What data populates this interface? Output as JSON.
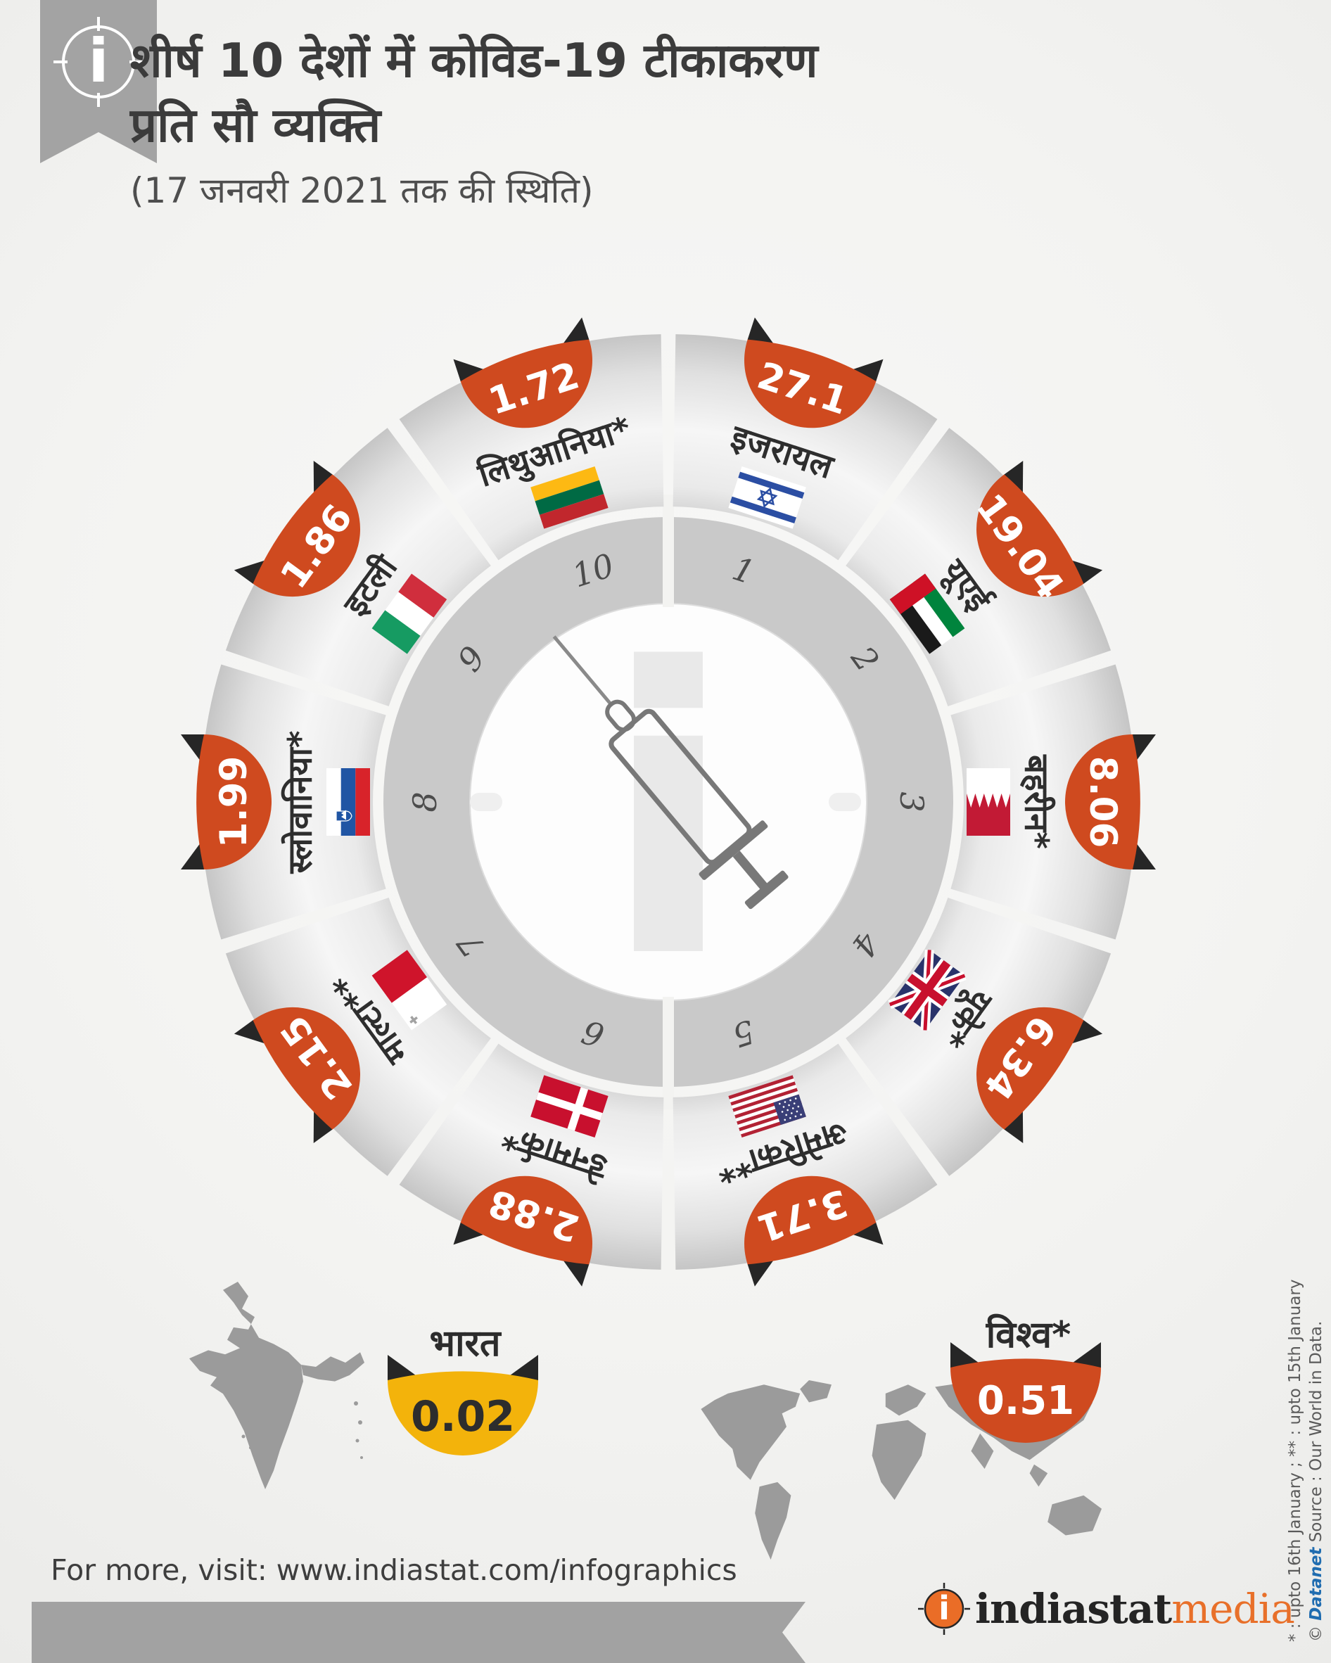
{
  "header": {
    "ribbon_icon": "indiastat-i-crosshair-icon",
    "title_line1": "शीर्ष 10 देशों में कोविड-19 टीकाकरण",
    "title_line2": "प्रति सौ व्यक्ति",
    "subtitle": "(17 जनवरी 2021 तक की स्थिति)"
  },
  "chart_data": {
    "type": "pie",
    "variant": "circular-wheel-infographic",
    "title": "शीर्ष 10 देशों में कोविड-19 टीकाकरण प्रति सौ व्यक्ति",
    "subtitle": "(17 जनवरी 2021 तक की स्थिति)",
    "categories": [
      "इजरायल",
      "यूएई",
      "बहरीन*",
      "यूके*",
      "अमेरिका**",
      "डेनमार्क*",
      "माल्टा**",
      "स्लोवानिया*",
      "इटली",
      "लिथुआनिया*"
    ],
    "values": [
      27.1,
      19.04,
      8.06,
      6.34,
      3.71,
      2.88,
      2.15,
      1.99,
      1.86,
      1.72
    ],
    "ranks": [
      1,
      2,
      3,
      4,
      5,
      6,
      7,
      8,
      9,
      10
    ],
    "annotations": [
      {
        "label": "भारत",
        "value": 0.02
      },
      {
        "label": "विश्व*",
        "value": 0.51
      }
    ],
    "legend_position": "on-segment"
  },
  "wheel": {
    "center_icon": "syringe-icon",
    "watermark": "i",
    "segments": [
      {
        "rank": "1",
        "country": "इजरायल",
        "value": "27.1",
        "flag": "israel"
      },
      {
        "rank": "2",
        "country": "यूएई",
        "value": "19.04",
        "flag": "uae"
      },
      {
        "rank": "3",
        "country": "बहरीन*",
        "value": "8.06",
        "flag": "bahrain"
      },
      {
        "rank": "4",
        "country": "यूके*",
        "value": "6.34",
        "flag": "uk"
      },
      {
        "rank": "5",
        "country": "अमेरिका**",
        "value": "3.71",
        "flag": "usa"
      },
      {
        "rank": "6",
        "country": "डेनमार्क*",
        "value": "2.88",
        "flag": "denmark"
      },
      {
        "rank": "7",
        "country": "माल्टा**",
        "value": "2.15",
        "flag": "malta"
      },
      {
        "rank": "8",
        "country": "स्लोवानिया*",
        "value": "1.99",
        "flag": "slovenia"
      },
      {
        "rank": "9",
        "country": "इटली",
        "value": "1.86",
        "flag": "italy"
      },
      {
        "rank": "10",
        "country": "लिथुआनिया*",
        "value": "1.72",
        "flag": "lithuania"
      }
    ]
  },
  "reference": {
    "india_label": "भारत",
    "india_value": "0.02",
    "world_label": "विश्व*",
    "world_value": "0.51"
  },
  "footer": {
    "visit_text": "For more, visit: www.indiastat.com/infographics",
    "brand_icon": "indiastat-i-crosshair-icon",
    "brand_name": "indiastat",
    "brand_suffix": "media"
  },
  "sidenotes": {
    "note_asterisks": "* : upto 16th January ; ** : upto 15th January",
    "copyright_prefix": "© ",
    "copyright_brand": "Datanet",
    "source_text": "  Source : Our World in Data."
  },
  "colors": {
    "accent_orange": "#cf4a1f",
    "accent_yellow": "#f3b30b",
    "wing_black": "#262626",
    "map_gray": "#9b9b9b",
    "banner_gray": "#a2a2a2",
    "brand_orange": "#e8702a",
    "datanet_blue": "#1f6cb0",
    "wedge_gray": "#d9d9d9",
    "ring_gray": "#c9c9c9"
  }
}
